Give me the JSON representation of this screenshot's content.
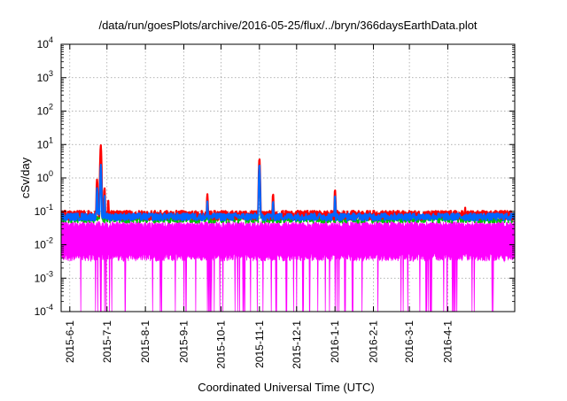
{
  "chart_data": {
    "type": "line",
    "title": "/data/run/goesPlots/archive/2016-05-25/flux/../bryn/366daysEarthData.plot",
    "xlabel": "Coordinated Universal Time (UTC)",
    "ylabel": "cSv/day",
    "y_scale": "log",
    "ylim": [
      0.0001,
      10000
    ],
    "y_ticks": [
      {
        "value": 0.0001,
        "base": "10",
        "exp": "-4"
      },
      {
        "value": 0.001,
        "base": "10",
        "exp": "-3"
      },
      {
        "value": 0.01,
        "base": "10",
        "exp": "-2"
      },
      {
        "value": 0.1,
        "base": "10",
        "exp": "-1"
      },
      {
        "value": 1,
        "base": "10",
        "exp": "0"
      },
      {
        "value": 10,
        "base": "10",
        "exp": "1"
      },
      {
        "value": 100,
        "base": "10",
        "exp": "2"
      },
      {
        "value": 1000,
        "base": "10",
        "exp": "3"
      },
      {
        "value": 10000,
        "base": "10",
        "exp": "4"
      }
    ],
    "xlim": [
      "2015-05-25",
      "2016-05-25"
    ],
    "x_ticks": [
      "2015-6-1",
      "2015-7-1",
      "2015-8-1",
      "2015-9-1",
      "2015-10-1",
      "2015-11-1",
      "2015-12-1",
      "2016-1-1",
      "2016-2-1",
      "2016-3-1",
      "2016-4-1"
    ],
    "grid": true,
    "legend": "none",
    "series": [
      {
        "color": "#ff0000",
        "baseline": 0.08,
        "peaks": [
          {
            "x": "2015-06-23",
            "y": 0.9
          },
          {
            "x": "2015-06-26",
            "y": 9.5
          },
          {
            "x": "2015-06-29",
            "y": 0.5
          },
          {
            "x": "2015-07-02",
            "y": 0.22
          },
          {
            "x": "2015-09-20",
            "y": 0.33
          },
          {
            "x": "2015-11-01",
            "y": 3.8
          },
          {
            "x": "2015-11-12",
            "y": 0.33
          },
          {
            "x": "2016-01-01",
            "y": 0.45
          },
          {
            "x": "2016-04-15",
            "y": 0.13
          }
        ]
      },
      {
        "color": "#00c000",
        "baseline": 0.06,
        "peaks": [
          {
            "x": "2015-06-26",
            "y": 2.0
          },
          {
            "x": "2015-11-01",
            "y": 2.0
          }
        ]
      },
      {
        "color": "#0066ff",
        "baseline": 0.07,
        "peaks": [
          {
            "x": "2015-06-23",
            "y": 0.5
          },
          {
            "x": "2015-06-26",
            "y": 2.5
          },
          {
            "x": "2015-06-29",
            "y": 0.3
          },
          {
            "x": "2015-09-20",
            "y": 0.2
          },
          {
            "x": "2015-11-01",
            "y": 2.5
          },
          {
            "x": "2015-11-12",
            "y": 0.2
          },
          {
            "x": "2016-01-01",
            "y": 0.3
          }
        ]
      },
      {
        "color": "#ff00ff",
        "baseline_range": [
          0.004,
          0.04
        ],
        "min": 0.0001
      }
    ]
  }
}
